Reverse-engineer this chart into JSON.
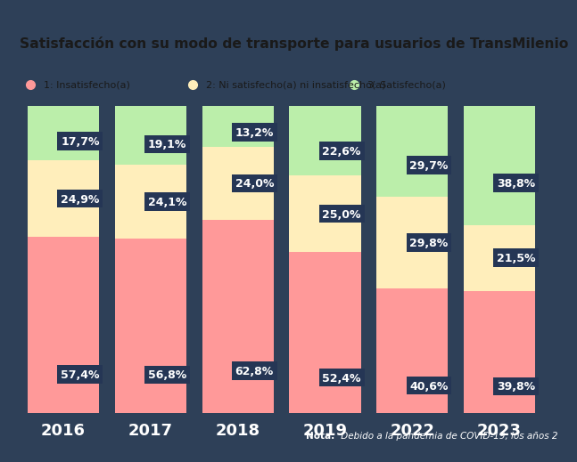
{
  "title": "Satisfacción con su modo de transporte para usuarios de TransMilenio",
  "categories": [
    "2016",
    "2017",
    "2018",
    "2019",
    "2022",
    "2023"
  ],
  "insatisfecho": [
    57.4,
    56.8,
    62.8,
    52.4,
    40.6,
    39.8
  ],
  "neutral": [
    24.9,
    24.1,
    24.0,
    25.0,
    29.8,
    21.5
  ],
  "satisfecho": [
    17.7,
    19.1,
    13.2,
    22.6,
    29.7,
    38.8
  ],
  "color_insatisfecho": "#FF9999",
  "color_neutral": "#FFEEBB",
  "color_satisfecho": "#BBEEAA",
  "color_background": "#2E4058",
  "color_header": "#ffffff",
  "color_label_bg": "#253655",
  "color_label_text": "#FFFFFF",
  "color_title": "#1a1a2e",
  "legend_labels": [
    "1: Insatisfecho(a)",
    "2: Ni satisfecho(a) ni insatisfecho(a)",
    "3: Satisfecho(a)"
  ],
  "legend_colors": [
    "#FF9999",
    "#FFEEBB",
    "#BBEEAA"
  ],
  "note_bold": "Nota: ",
  "note_italic": " Debido a la pandemia de COVID-19, los años 2",
  "bar_width": 0.82
}
